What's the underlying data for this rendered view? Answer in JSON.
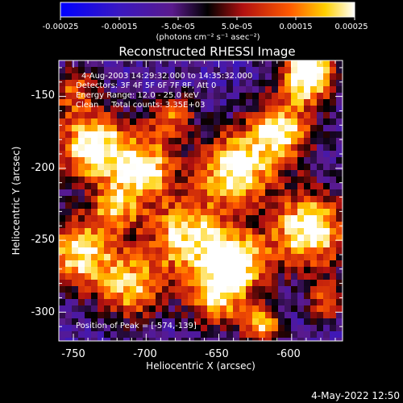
{
  "colorbar": {
    "tick_labels": [
      "-0.00025",
      "-0.00015",
      "-5.0e-05",
      "5.0e-05",
      "0.00015",
      "0.00025"
    ],
    "unit_label": "(photons cm⁻² s⁻¹ asec⁻²)",
    "range": [
      -0.00025,
      0.00025
    ]
  },
  "image": {
    "title": "Reconstructed RHESSI Image",
    "info_lines": [
      "4-Aug-2003 14:29:32.000 to 14:35:32.000",
      "Detectors: 3F 4F 5F 6F 7F 8F, Att 0",
      "Energy Range: 12.0 - 25.0 keV",
      "Clean     Total counts: 3.35E+03"
    ],
    "peak_text": "Position of Peak = [-574,-139]"
  },
  "axes": {
    "xlabel": "Heliocentric X (arcsec)",
    "ylabel": "Heliocentric Y (arcsec)",
    "xticks": [
      "-750",
      "-700",
      "-650",
      "-600"
    ],
    "yticks": [
      "-150",
      "-200",
      "-250",
      "-300"
    ],
    "xlim": [
      -760,
      -565
    ],
    "ylim": [
      -320,
      -125
    ]
  },
  "footer": {
    "timestamp": "4-May-2022 12:50"
  },
  "colors": {
    "background": "#000000",
    "text": "#ffffff"
  }
}
